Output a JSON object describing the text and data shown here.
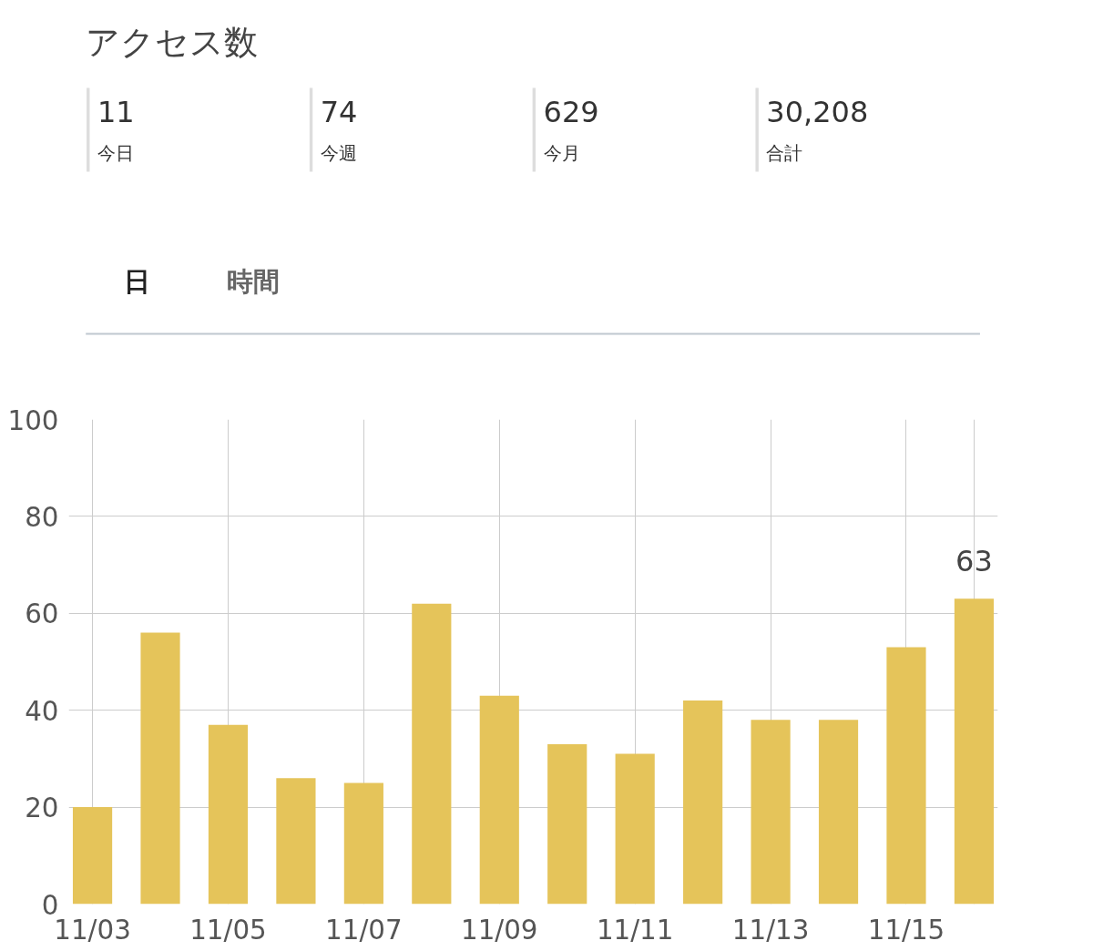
{
  "chart_data": [
    {
      "type": "other",
      "title": "アクセス数",
      "annotations": [
        "11",
        "今日",
        "74",
        "今週",
        "629",
        "今月",
        "30,208",
        "合計",
        "日",
        "時間"
      ]
    },
    {
      "type": "bar",
      "categories": [
        "11/03",
        null,
        "11/05",
        null,
        "11/07",
        null,
        "11/09",
        null,
        "11/11",
        null,
        "11/13",
        null,
        "11/15",
        null
      ],
      "values": [
        20,
        56,
        37,
        26,
        25,
        62,
        43,
        33,
        31,
        42,
        38,
        38,
        53,
        63
      ],
      "value_labels": [
        null,
        null,
        null,
        null,
        null,
        null,
        null,
        null,
        null,
        null,
        null,
        null,
        null,
        "63"
      ],
      "color": "#e5c45a",
      "ylim": [
        0,
        100
      ],
      "yticks": [
        0,
        20,
        40,
        60,
        80,
        100
      ],
      "grid": true
    }
  ]
}
